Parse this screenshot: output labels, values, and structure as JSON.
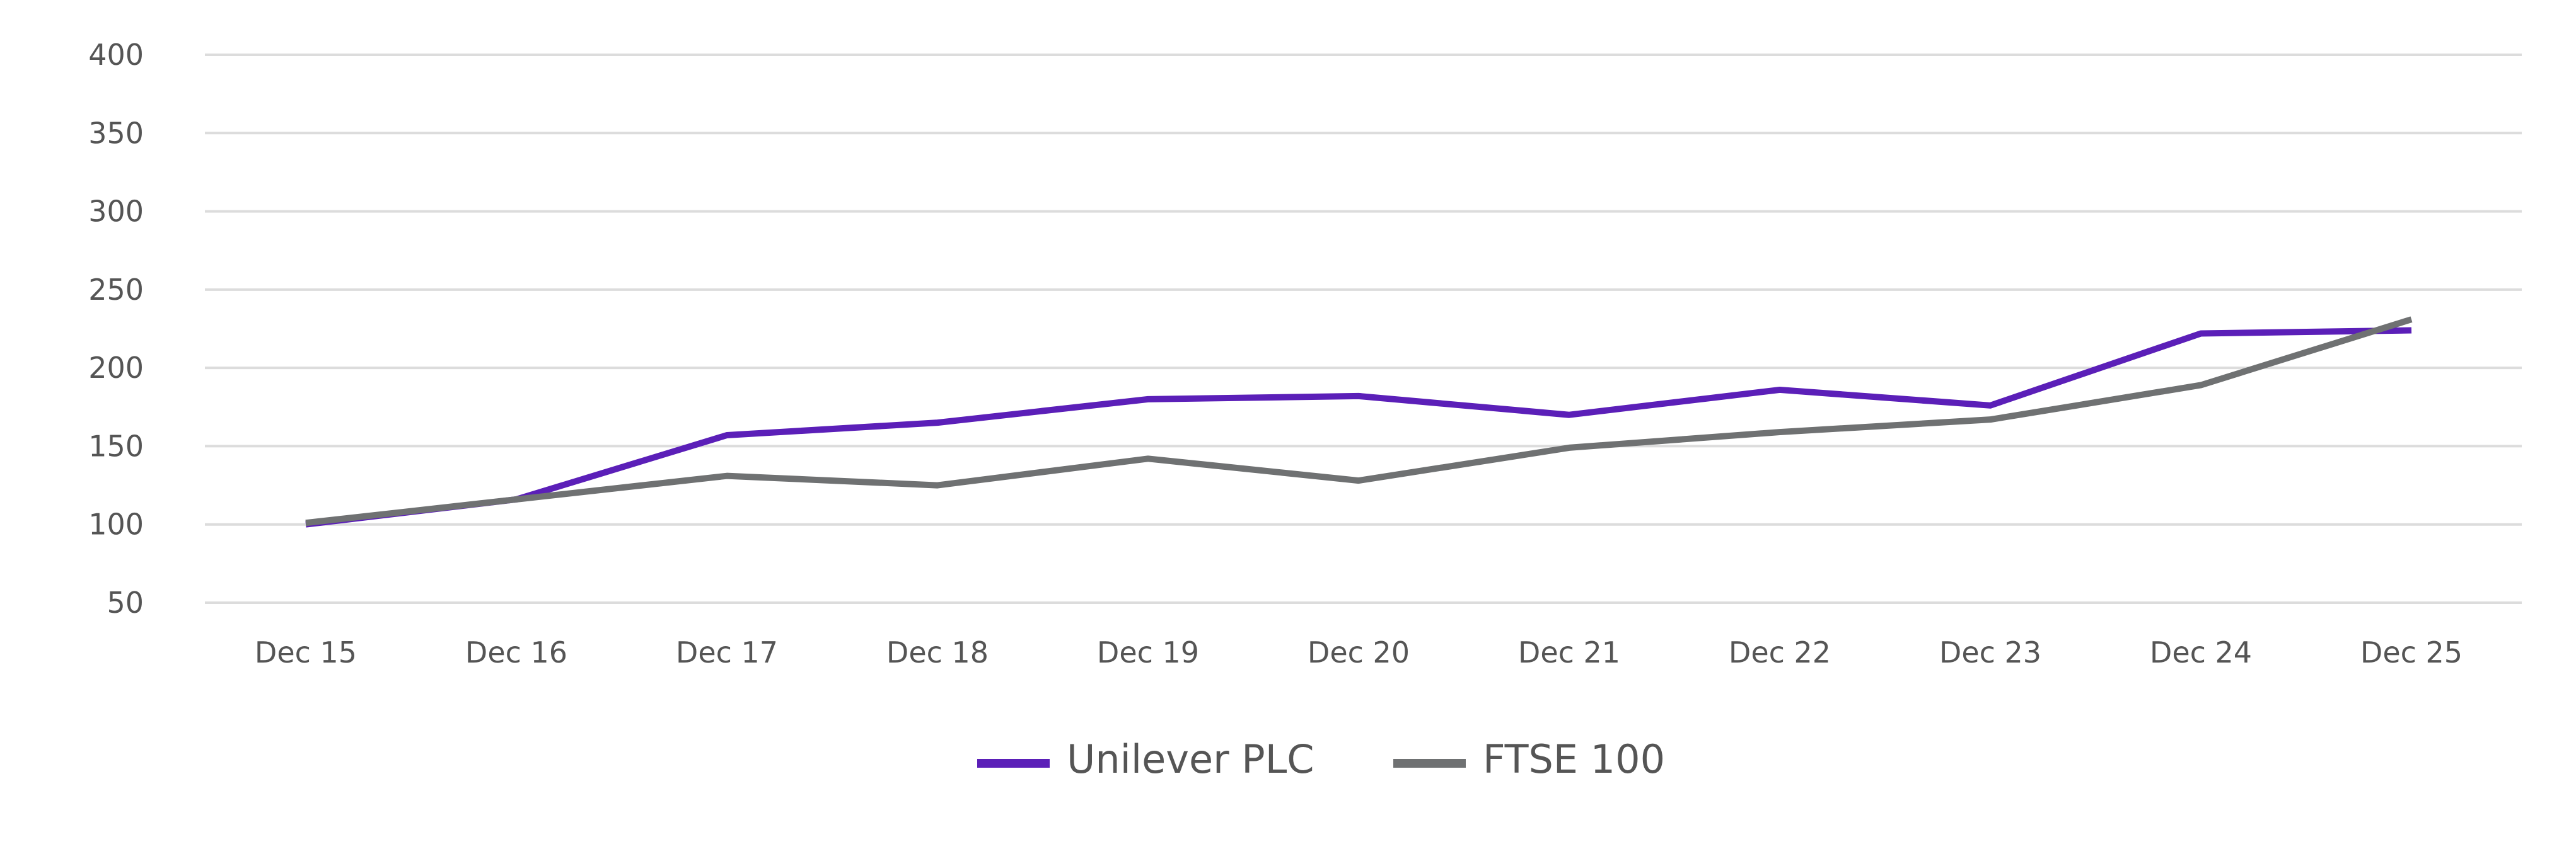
{
  "chart_data": {
    "type": "line",
    "title": "",
    "xlabel": "",
    "ylabel": "",
    "categories": [
      "Dec 15",
      "Dec 16",
      "Dec 17",
      "Dec 18",
      "Dec 19",
      "Dec 20",
      "Dec 21",
      "Dec 22",
      "Dec 23",
      "Dec 24",
      "Dec 25"
    ],
    "ylim": [
      50,
      400
    ],
    "yticks": [
      400,
      350,
      300,
      250,
      200,
      150,
      100,
      50
    ],
    "grid": true,
    "legend_position": "bottom-center",
    "series": [
      {
        "name": "Unilever PLC",
        "color": "#5b1fb8",
        "values": [
          100,
          116,
          157,
          165,
          180,
          182,
          170,
          186,
          176,
          222,
          224
        ]
      },
      {
        "name": "FTSE 100",
        "color": "#6f7172",
        "values": [
          101,
          116,
          131,
          125,
          142,
          128,
          149,
          159,
          167,
          189,
          231
        ]
      }
    ]
  }
}
